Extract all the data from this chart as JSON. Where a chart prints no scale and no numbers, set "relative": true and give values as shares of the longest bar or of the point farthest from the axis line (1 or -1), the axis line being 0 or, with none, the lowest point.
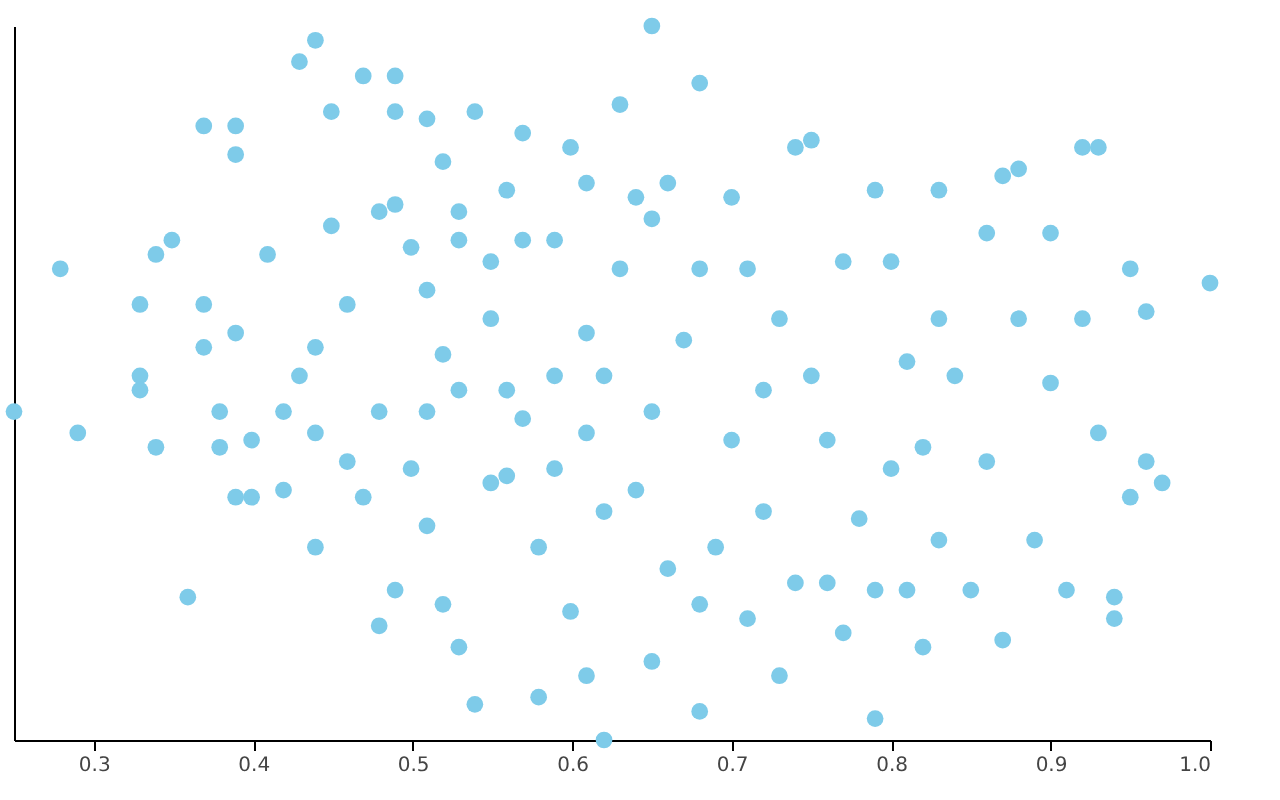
{
  "chart_data": {
    "type": "scatter",
    "relative": true,
    "marker": "circle",
    "grid": false,
    "tick_labels": "x",
    "xlim": [
      0.25,
      1.0
    ],
    "xticks": [
      0.3,
      0.4,
      0.5,
      0.6,
      0.7,
      0.8,
      0.9,
      {
        "value": 1,
        "label": "1.0"
      }
    ],
    "series": [
      {
        "color": "#7ecbe9",
        "x": [
          0.25,
          0.279,
          0.29,
          0.329,
          0.329,
          0.329,
          0.339,
          0.339,
          0.349,
          0.359,
          0.369,
          0.369,
          0.369,
          0.379,
          0.379,
          0.389,
          0.389,
          0.389,
          0.389,
          0.399,
          0.399,
          0.409,
          0.419,
          0.419,
          0.429,
          0.429,
          0.439,
          0.439,
          0.439,
          0.439,
          0.449,
          0.449,
          0.459,
          0.459,
          0.469,
          0.469,
          0.479,
          0.479,
          0.479,
          0.489,
          0.489,
          0.489,
          0.489,
          0.499,
          0.499,
          0.509,
          0.509,
          0.509,
          0.509,
          0.519,
          0.519,
          0.519,
          0.529,
          0.529,
          0.529,
          0.529,
          0.539,
          0.539,
          0.549,
          0.549,
          0.549,
          0.559,
          0.559,
          0.559,
          0.569,
          0.569,
          0.569,
          0.579,
          0.579,
          0.589,
          0.589,
          0.589,
          0.599,
          0.599,
          0.609,
          0.609,
          0.609,
          0.609,
          0.62,
          0.62,
          0.62,
          0.63,
          0.63,
          0.64,
          0.64,
          0.65,
          0.65,
          0.65,
          0.65,
          0.66,
          0.66,
          0.67,
          0.68,
          0.68,
          0.68,
          0.68,
          0.69,
          0.7,
          0.7,
          0.71,
          0.71,
          0.72,
          0.72,
          0.73,
          0.73,
          0.74,
          0.74,
          0.75,
          0.75,
          0.76,
          0.76,
          0.77,
          0.77,
          0.78,
          0.79,
          0.79,
          0.79,
          0.8,
          0.8,
          0.81,
          0.81,
          0.82,
          0.82,
          0.83,
          0.83,
          0.83,
          0.84,
          0.85,
          0.86,
          0.86,
          0.87,
          0.87,
          0.88,
          0.88,
          0.89,
          0.9,
          0.9,
          0.91,
          0.92,
          0.92,
          0.93,
          0.93,
          0.94,
          0.94,
          0.95,
          0.95,
          0.96,
          0.96,
          0.97,
          1.0
        ],
        "values": [
          0.46,
          0.66,
          0.43,
          0.61,
          0.51,
          0.49,
          0.68,
          0.41,
          0.7,
          0.2,
          0.61,
          0.55,
          0.86,
          0.46,
          0.41,
          0.86,
          0.82,
          0.57,
          0.34,
          0.34,
          0.42,
          0.68,
          0.46,
          0.35,
          0.51,
          0.95,
          0.98,
          0.55,
          0.27,
          0.43,
          0.72,
          0.88,
          0.61,
          0.39,
          0.34,
          0.93,
          0.46,
          0.74,
          0.16,
          0.93,
          0.88,
          0.75,
          0.21,
          0.38,
          0.69,
          0.63,
          0.46,
          0.3,
          0.87,
          0.81,
          0.19,
          0.54,
          0.74,
          0.7,
          0.49,
          0.13,
          0.88,
          0.05,
          0.67,
          0.59,
          0.36,
          0.77,
          0.49,
          0.37,
          0.85,
          0.7,
          0.45,
          0.27,
          0.06,
          0.7,
          0.51,
          0.38,
          0.18,
          0.83,
          0.78,
          0.57,
          0.43,
          0.09,
          0.0,
          0.51,
          0.32,
          0.89,
          0.66,
          0.35,
          0.76,
          1.0,
          0.73,
          0.46,
          0.11,
          0.78,
          0.24,
          0.56,
          0.66,
          0.92,
          0.04,
          0.19,
          0.27,
          0.76,
          0.42,
          0.66,
          0.17,
          0.49,
          0.32,
          0.59,
          0.09,
          0.22,
          0.83,
          0.84,
          0.51,
          0.22,
          0.42,
          0.67,
          0.15,
          0.31,
          0.03,
          0.21,
          0.77,
          0.67,
          0.38,
          0.21,
          0.53,
          0.41,
          0.13,
          0.77,
          0.59,
          0.28,
          0.51,
          0.21,
          0.71,
          0.39,
          0.79,
          0.14,
          0.59,
          0.8,
          0.28,
          0.71,
          0.5,
          0.21,
          0.83,
          0.59,
          0.43,
          0.83,
          0.17,
          0.2,
          0.66,
          0.34,
          0.6,
          0.39,
          0.36,
          0.64
        ]
      }
    ]
  }
}
